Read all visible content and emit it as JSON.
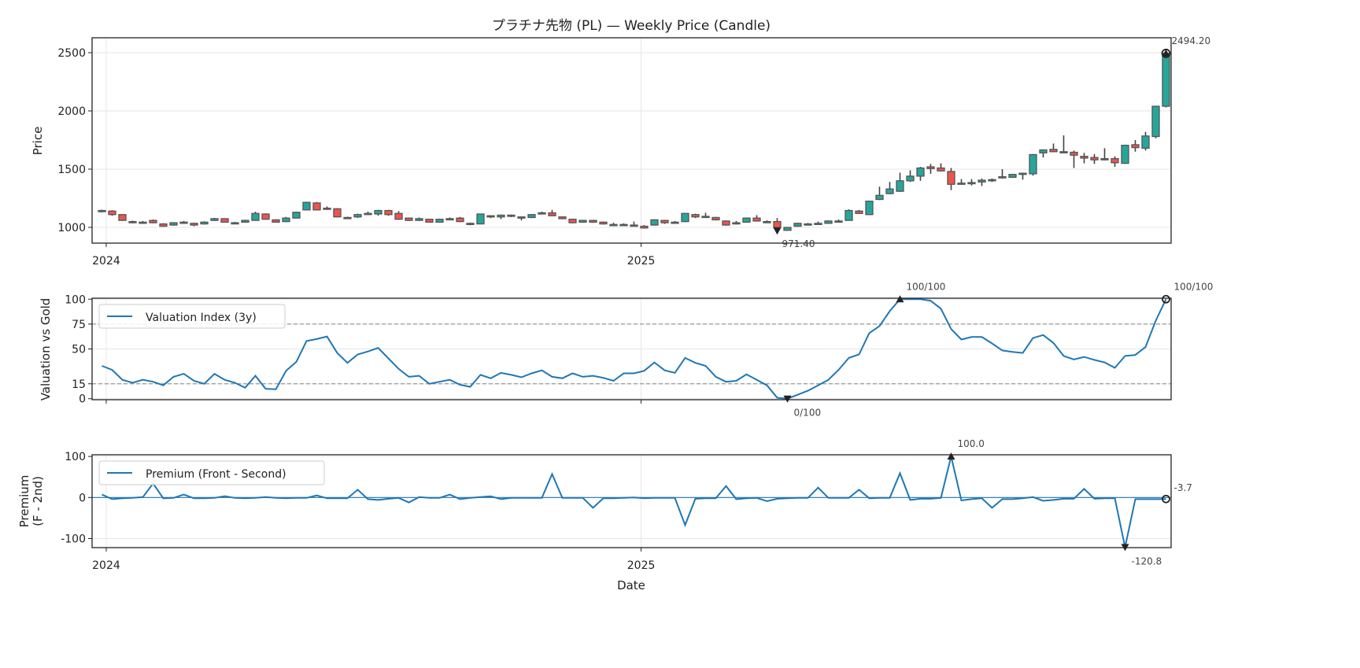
{
  "chart_data": [
    {
      "type": "candlestick",
      "title": "プラチナ先物 (PL) — Weekly Price (Candle)",
      "ylabel": "Price",
      "ylim": [
        865,
        2628
      ],
      "yticks": [
        1000,
        1500,
        2000,
        2500
      ],
      "xticks": [
        {
          "index": 0.42,
          "label": "2024"
        },
        {
          "index": 52.7,
          "label": "2025"
        }
      ],
      "grid": true,
      "colors": {
        "up": "#26a69a",
        "down": "#ef5350",
        "edge": "#555555"
      },
      "open": [
        1135,
        1140,
        1110,
        1050,
        1045,
        1060,
        1030,
        1020,
        1045,
        1035,
        1030,
        1060,
        1075,
        1040,
        1045,
        1060,
        1115,
        1065,
        1050,
        1080,
        1150,
        1210,
        1165,
        1160,
        1085,
        1090,
        1120,
        1115,
        1145,
        1120,
        1080,
        1060,
        1070,
        1045,
        1075,
        1080,
        1035,
        1030,
        1100,
        1090,
        1105,
        1090,
        1085,
        1125,
        1125,
        1090,
        1070,
        1045,
        1060,
        1045,
        1025,
        1025,
        1020,
        1010,
        1020,
        1060,
        1045,
        1050,
        1110,
        1095,
        1085,
        1055,
        1030,
        1045,
        1080,
        1050,
        1050,
        975,
        1010,
        1030,
        1030,
        1035,
        1055,
        1060,
        1140,
        1110,
        1240,
        1290,
        1310,
        1400,
        1440,
        1520,
        1510,
        1480,
        1380,
        1385,
        1390,
        1410,
        1425,
        1430,
        1455,
        1460,
        1640,
        1670,
        1650,
        1645,
        1610,
        1600,
        1580,
        1590,
        1550,
        1710,
        1680,
        1780,
        2040
      ],
      "high": [
        1152,
        1148,
        1112,
        1058,
        1055,
        1068,
        1036,
        1045,
        1055,
        1040,
        1052,
        1082,
        1078,
        1048,
        1066,
        1135,
        1120,
        1070,
        1090,
        1135,
        1220,
        1218,
        1180,
        1165,
        1092,
        1118,
        1135,
        1150,
        1150,
        1140,
        1085,
        1085,
        1075,
        1075,
        1085,
        1090,
        1040,
        1118,
        1105,
        1110,
        1110,
        1095,
        1115,
        1135,
        1150,
        1095,
        1075,
        1065,
        1065,
        1050,
        1040,
        1035,
        1050,
        1020,
        1070,
        1065,
        1055,
        1125,
        1118,
        1125,
        1090,
        1060,
        1055,
        1085,
        1105,
        1060,
        1080,
        1002,
        1040,
        1038,
        1050,
        1060,
        1068,
        1155,
        1150,
        1230,
        1350,
        1390,
        1470,
        1490,
        1520,
        1545,
        1550,
        1510,
        1415,
        1415,
        1420,
        1420,
        1500,
        1460,
        1470,
        1630,
        1670,
        1720,
        1790,
        1660,
        1640,
        1630,
        1680,
        1610,
        1710,
        1750,
        1820,
        2040,
        2494.2
      ],
      "low": [
        1130,
        1100,
        1058,
        1035,
        1038,
        1035,
        1005,
        1015,
        1038,
        1010,
        1025,
        1055,
        1042,
        1032,
        1040,
        1058,
        1066,
        1040,
        1046,
        1078,
        1148,
        1148,
        1150,
        1086,
        1075,
        1082,
        1112,
        1100,
        1100,
        1065,
        1055,
        1055,
        1040,
        1040,
        1068,
        1045,
        1018,
        1028,
        1080,
        1072,
        1088,
        1060,
        1080,
        1118,
        1095,
        1070,
        1035,
        1040,
        1040,
        1025,
        1015,
        1015,
        1010,
        990,
        1015,
        1030,
        1035,
        1045,
        1080,
        1085,
        1060,
        1015,
        1025,
        1040,
        1050,
        1040,
        971.4,
        972,
        1005,
        1020,
        1025,
        1030,
        1045,
        1058,
        1115,
        1105,
        1235,
        1285,
        1305,
        1390,
        1400,
        1460,
        1480,
        1320,
        1370,
        1360,
        1355,
        1390,
        1420,
        1425,
        1410,
        1445,
        1600,
        1645,
        1650,
        1510,
        1550,
        1545,
        1575,
        1520,
        1545,
        1650,
        1660,
        1765,
        2030
      ],
      "close": [
        1145,
        1110,
        1060,
        1040,
        1045,
        1040,
        1010,
        1040,
        1045,
        1020,
        1045,
        1075,
        1045,
        1040,
        1060,
        1120,
        1070,
        1045,
        1080,
        1130,
        1215,
        1150,
        1160,
        1090,
        1080,
        1110,
        1120,
        1145,
        1110,
        1070,
        1060,
        1075,
        1045,
        1070,
        1075,
        1050,
        1025,
        1115,
        1090,
        1105,
        1095,
        1090,
        1110,
        1125,
        1100,
        1075,
        1040,
        1060,
        1045,
        1030,
        1025,
        1025,
        1020,
        995,
        1065,
        1040,
        1045,
        1120,
        1090,
        1095,
        1065,
        1020,
        1040,
        1080,
        1055,
        1050,
        1000,
        1000,
        1035,
        1030,
        1035,
        1055,
        1055,
        1145,
        1120,
        1225,
        1275,
        1330,
        1400,
        1440,
        1510,
        1505,
        1485,
        1370,
        1380,
        1385,
        1405,
        1410,
        1435,
        1455,
        1465,
        1625,
        1665,
        1650,
        1650,
        1620,
        1595,
        1580,
        1590,
        1555,
        1705,
        1685,
        1785,
        2040,
        2494.2
      ],
      "annotations": {
        "min_label": "971.40",
        "min_index": 66,
        "max_label": "2494.20",
        "max_index": 104
      }
    },
    {
      "type": "line",
      "ylabel": "Valuation vs Gold",
      "ylim": [
        -1,
        101
      ],
      "yticks": [
        0,
        15,
        50,
        75,
        100
      ],
      "reference_lines": [
        75,
        15
      ],
      "legend": {
        "label": "Valuation Index (3y)",
        "placement": "upper-left"
      },
      "values": [
        33,
        29,
        19,
        16,
        19,
        17,
        13.5,
        22,
        25,
        18,
        15,
        25,
        19,
        16,
        11,
        23,
        10,
        9.5,
        28,
        37,
        58,
        60,
        62.5,
        46,
        36,
        44.5,
        47.5,
        51,
        40.5,
        30,
        22,
        23,
        15,
        17,
        19,
        14,
        12,
        24,
        20.5,
        26,
        24,
        21.5,
        25.5,
        28.5,
        22,
        20.5,
        25.5,
        22,
        23,
        21,
        18,
        25.5,
        25.5,
        28,
        36.5,
        28.5,
        26,
        41,
        36,
        33,
        22,
        17,
        18,
        24.5,
        19,
        13.5,
        1,
        0,
        4,
        8,
        13.5,
        19,
        29,
        41,
        44.5,
        66,
        73,
        88,
        100,
        100,
        100,
        98.5,
        90.5,
        70,
        59.5,
        62,
        62,
        55.5,
        48.5,
        47,
        46,
        61,
        64,
        56,
        43,
        39.5,
        42,
        39,
        36.5,
        31,
        43,
        44,
        52,
        78.5,
        100
      ],
      "annotations": {
        "max_label": "100/100",
        "max_index": 78,
        "min_label": "0/100",
        "min_index": 67,
        "last_label": "100/100"
      }
    },
    {
      "type": "line",
      "ylabel": "Premium\n(F - 2nd)",
      "ylabel_lines": [
        "Premium",
        "(F - 2nd)"
      ],
      "xlabel": "Date",
      "ylim": [
        -122,
        104
      ],
      "yticks": [
        -100,
        0,
        100
      ],
      "legend": {
        "label": "Premium (Front - Second)",
        "placement": "upper-left"
      },
      "values": [
        7,
        -4,
        -2,
        -1,
        1,
        34,
        -2,
        -1,
        7,
        -2,
        -2,
        -1,
        3,
        -1,
        -2,
        -1,
        1,
        -1,
        -2,
        -1,
        -1,
        5,
        -2,
        -2,
        -2,
        19,
        -4,
        -6,
        -3,
        -1,
        -12,
        1,
        -1,
        -1,
        7,
        -4,
        -1,
        1,
        3,
        -4,
        -1,
        -1,
        -1,
        -1,
        57,
        -1,
        -1,
        -1,
        -25,
        -2,
        -2,
        -1,
        0,
        -2,
        -1,
        -1,
        -1,
        -67,
        -3,
        -2,
        -2,
        28,
        -4,
        -2,
        -1,
        -9,
        -3,
        -2,
        -1,
        -1,
        24,
        -1,
        -1,
        -1,
        19,
        -2,
        -1,
        -1,
        59,
        -6,
        -3,
        -3,
        -1,
        100,
        -7,
        -4,
        -2,
        -25,
        -4,
        -4,
        -2,
        1,
        -8,
        -6,
        -3,
        -3,
        21,
        -3,
        -2,
        -2,
        -120.8,
        -4,
        -4,
        -4,
        -3.7
      ],
      "annotations": {
        "max_label": "100.0",
        "max_index": 83,
        "min_label": "-120.8",
        "min_index": 100,
        "last_label": "-3.7"
      }
    }
  ]
}
